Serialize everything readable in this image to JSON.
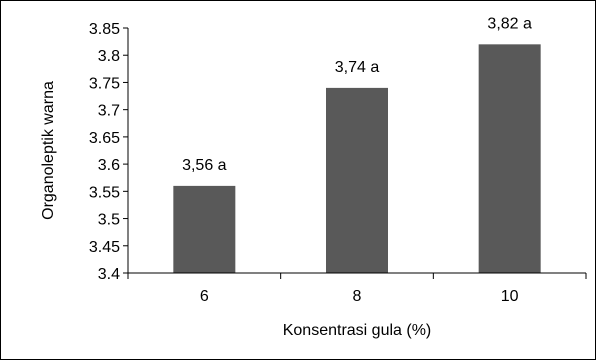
{
  "chart_data": {
    "type": "bar",
    "categories": [
      "6",
      "8",
      "10"
    ],
    "values": [
      3.56,
      3.74,
      3.82
    ],
    "data_labels": [
      "3,56 a",
      "3,74 a",
      "3,82 a"
    ],
    "title": "",
    "xlabel": "Konsentrasi gula (%)",
    "ylabel": "Organoleptik warna",
    "ylim": [
      3.4,
      3.85
    ],
    "yticks": [
      3.4,
      3.45,
      3.5,
      3.55,
      3.6,
      3.65,
      3.7,
      3.75,
      3.8,
      3.85
    ],
    "ytick_labels": [
      "3.4",
      "3.45",
      "3.5",
      "3.55",
      "3.6",
      "3.65",
      "3.7",
      "3.75",
      "3.8",
      "3.85"
    ],
    "grid": false,
    "bar_color": "#595959"
  }
}
